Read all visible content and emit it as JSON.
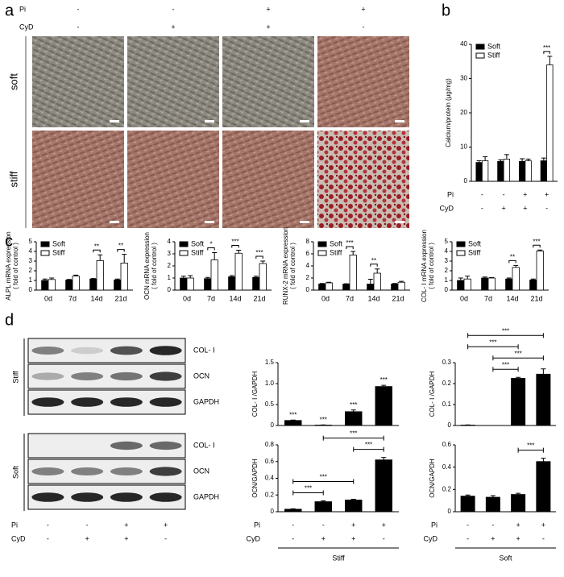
{
  "panel_labels": [
    "a",
    "b",
    "c",
    "d"
  ],
  "figure_a": {
    "conditions": [
      {
        "label": "Pi",
        "signs": [
          "-",
          "-",
          "+",
          "+"
        ]
      },
      {
        "label": "CyD",
        "signs": [
          "-",
          "+",
          "+",
          "-"
        ]
      }
    ],
    "row_labels": [
      "soft",
      "stiff"
    ]
  },
  "blots": {
    "groups": [
      {
        "label": "Stiff",
        "bands": [
          "COL- Ⅰ",
          "OCN",
          "GAPDH"
        ]
      },
      {
        "label": "Soft",
        "bands": [
          "COL- Ⅰ",
          "OCN",
          "GAPDH"
        ]
      }
    ],
    "conditions": [
      {
        "label": "Pi",
        "signs": [
          "-",
          "-",
          "+",
          "+"
        ]
      },
      {
        "label": "CyD",
        "signs": [
          "-",
          "+",
          "+",
          "-"
        ]
      }
    ]
  },
  "chart_data": [
    {
      "type": "bar",
      "ylabel": [
        "Calcium/protein (μg/mg)"
      ],
      "ylim": [
        0,
        40
      ],
      "yticks": [
        0,
        10,
        20,
        30,
        40
      ],
      "series": [
        {
          "name": "Soft",
          "color": "#000000",
          "values": [
            5.5,
            5.8,
            5.8,
            6
          ],
          "errors": [
            0.5,
            0.5,
            0.8,
            0.8
          ]
        },
        {
          "name": "Stiff",
          "color": "#ffffff",
          "values": [
            6,
            6.5,
            6,
            34
          ],
          "errors": [
            1.2,
            1.3,
            0.5,
            2.5
          ]
        }
      ],
      "significance": [
        {
          "category": 3,
          "label": "***"
        }
      ],
      "conditions": [
        {
          "label": "Pi",
          "signs": [
            "-",
            "-",
            "+",
            "+"
          ]
        },
        {
          "label": "CyD",
          "signs": [
            "-",
            "+",
            "+",
            "-"
          ]
        }
      ]
    },
    {
      "type": "bar",
      "ylabel": [
        "ALPL mRNA expression",
        "( fold of control )"
      ],
      "ylim": [
        0,
        5
      ],
      "yticks": [
        0,
        1,
        2,
        3,
        4,
        5
      ],
      "categories": [
        "0d",
        "7d",
        "14d",
        "21d"
      ],
      "series": [
        {
          "name": "Soft",
          "color": "#000000",
          "values": [
            1.0,
            1.05,
            1.15,
            1.05
          ],
          "errors": [
            0.15,
            0.05,
            0.05,
            0.1
          ]
        },
        {
          "name": "Stiff",
          "color": "#ffffff",
          "values": [
            1.1,
            1.45,
            3.05,
            2.8
          ],
          "errors": [
            0.15,
            0.1,
            0.6,
            0.9
          ]
        }
      ],
      "significance": [
        {
          "category": 2,
          "label": "**"
        },
        {
          "category": 3,
          "label": "**"
        }
      ]
    },
    {
      "type": "bar",
      "ylabel": [
        "OCN mRNA expression",
        "( fold of control )"
      ],
      "ylim": [
        0,
        4
      ],
      "yticks": [
        0,
        1,
        2,
        3,
        4
      ],
      "categories": [
        "0d",
        "7d",
        "14d",
        "21d"
      ],
      "series": [
        {
          "name": "Soft",
          "color": "#000000",
          "values": [
            1.0,
            0.95,
            1.1,
            1.05
          ],
          "errors": [
            0.15,
            0.1,
            0.1,
            0.1
          ]
        },
        {
          "name": "Stiff",
          "color": "#ffffff",
          "values": [
            1.0,
            2.5,
            3.05,
            2.2
          ],
          "errors": [
            0.2,
            0.6,
            0.25,
            0.2
          ]
        }
      ],
      "significance": [
        {
          "category": 1,
          "label": "*"
        },
        {
          "category": 2,
          "label": "***"
        },
        {
          "category": 3,
          "label": "***"
        }
      ]
    },
    {
      "type": "bar",
      "ylabel": [
        "RUNX-2 mRNA expression",
        "( fold of control )"
      ],
      "ylim": [
        0,
        8
      ],
      "yticks": [
        0,
        2,
        4,
        6,
        8
      ],
      "categories": [
        "0d",
        "7d",
        "14d",
        "21d"
      ],
      "series": [
        {
          "name": "Soft",
          "color": "#000000",
          "values": [
            1.0,
            1.0,
            1.0,
            1.0
          ],
          "errors": [
            0.1,
            0.05,
            0.8,
            0.1
          ]
        },
        {
          "name": "Stiff",
          "color": "#ffffff",
          "values": [
            1.2,
            5.8,
            2.8,
            1.3
          ],
          "errors": [
            0.1,
            0.6,
            0.7,
            0.15
          ]
        }
      ],
      "significance": [
        {
          "category": 1,
          "label": "***"
        },
        {
          "category": 2,
          "label": "**"
        }
      ]
    },
    {
      "type": "bar",
      "ylabel": [
        "COL- Ⅰ mRNA expression",
        "( fold of control )"
      ],
      "ylim": [
        0,
        5
      ],
      "yticks": [
        0,
        1,
        2,
        3,
        4,
        5
      ],
      "categories": [
        "0d",
        "7d",
        "14d",
        "21d"
      ],
      "series": [
        {
          "name": "Soft",
          "color": "#000000",
          "values": [
            1.0,
            1.25,
            1.15,
            1.05
          ],
          "errors": [
            0.25,
            0.1,
            0.1,
            0.1
          ]
        },
        {
          "name": "Stiff",
          "color": "#ffffff",
          "values": [
            1.15,
            1.25,
            2.35,
            4.05
          ],
          "errors": [
            0.3,
            0.05,
            0.2,
            0.1
          ]
        }
      ],
      "significance": [
        {
          "category": 2,
          "label": "**"
        },
        {
          "category": 3,
          "label": "***"
        }
      ]
    },
    {
      "type": "bar",
      "ylabel": [
        "COL- Ⅰ /GAPDH"
      ],
      "ylim": [
        0,
        1.5
      ],
      "yticks": [
        0,
        0.5,
        {
          "value": 1,
          "label": "1.0"
        },
        1.5
      ],
      "series": [
        {
          "color": "#000000",
          "values": [
            0.12,
            0.01,
            0.33,
            0.93
          ],
          "errors": [
            0.01,
            0.005,
            0.04,
            0.03
          ]
        }
      ],
      "bar_annotations": [
        "***",
        "***",
        "***",
        "***"
      ]
    },
    {
      "type": "bar",
      "ylabel": [
        "OCN/GAPDH"
      ],
      "ylim": [
        0,
        0.8
      ],
      "yticks": [
        0,
        0.2,
        0.4,
        0.6,
        0.8
      ],
      "series": [
        {
          "color": "#000000",
          "values": [
            0.03,
            0.12,
            0.14,
            0.62
          ],
          "errors": [
            0.005,
            0.01,
            0.01,
            0.03
          ]
        }
      ],
      "brackets": [
        {
          "between": [
            0,
            1
          ],
          "label": "***"
        },
        {
          "between": [
            0,
            2
          ],
          "label": "***"
        },
        {
          "between": [
            2,
            3
          ],
          "label": "***"
        },
        {
          "between": [
            1,
            3
          ],
          "label": "***"
        }
      ],
      "conditions": [
        {
          "label": "Pi",
          "signs": [
            "-",
            "-",
            "+",
            "+"
          ]
        },
        {
          "label": "CyD",
          "signs": [
            "-",
            "+",
            "+",
            "-"
          ]
        }
      ],
      "group": "Stiff"
    },
    {
      "type": "bar",
      "ylabel": [
        "COL- Ⅰ /GAPDH"
      ],
      "ylim": [
        0,
        0.3
      ],
      "yticks": [
        0,
        0.1,
        0.2,
        0.3
      ],
      "series": [
        {
          "color": "#000000",
          "values": [
            0.002,
            0,
            0.225,
            0.245
          ],
          "errors": [
            0.001,
            0,
            0.005,
            0.025
          ]
        }
      ],
      "brackets": [
        {
          "between": [
            1,
            2
          ],
          "label": "***"
        },
        {
          "between": [
            1,
            3
          ],
          "label": "***"
        },
        {
          "between": [
            0,
            2
          ],
          "label": "***"
        },
        {
          "between": [
            0,
            3
          ],
          "label": "***"
        }
      ]
    },
    {
      "type": "bar",
      "ylabel": [
        "OCN/GAPDH"
      ],
      "ylim": [
        0,
        0.6
      ],
      "yticks": [
        0,
        0.2,
        0.4,
        0.6
      ],
      "series": [
        {
          "color": "#000000",
          "values": [
            0.14,
            0.13,
            0.155,
            0.45
          ],
          "errors": [
            0.01,
            0.015,
            0.01,
            0.03
          ]
        }
      ],
      "brackets": [
        {
          "between": [
            2,
            3
          ],
          "label": "***"
        }
      ],
      "conditions": [
        {
          "label": "Pi",
          "signs": [
            "-",
            "-",
            "+",
            "+"
          ]
        },
        {
          "label": "CyD",
          "signs": [
            "-",
            "+",
            "+",
            "-"
          ]
        }
      ],
      "group": "Soft"
    }
  ]
}
